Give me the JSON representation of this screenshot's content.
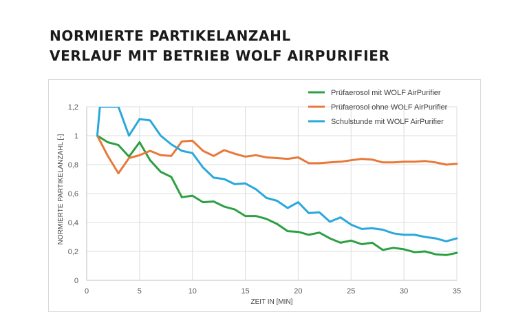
{
  "heading": {
    "line1": "NORMIERTE PARTIKELANZAHL",
    "line2": "VERLAUF MIT BETRIEB WOLF AIRPURIFIER"
  },
  "chart_data": {
    "type": "line",
    "xlabel": "ZEIT IN [MIN]",
    "ylabel": "NORMIERTE PARTIKELANZAHL [-]",
    "xlim": [
      0,
      35
    ],
    "ylim": [
      0,
      1.2
    ],
    "xticks": [
      0,
      5,
      10,
      15,
      20,
      25,
      30,
      35
    ],
    "yticks": [
      0,
      0.2,
      0.4,
      0.6,
      0.8,
      1,
      1.2
    ],
    "xtick_labels": [
      "0",
      "5",
      "10",
      "15",
      "20",
      "25",
      "30",
      "35"
    ],
    "ytick_labels": [
      "0",
      "0,2",
      "0,4",
      "0,6",
      "0,8",
      "1",
      "1,2"
    ],
    "grid": true,
    "legend_position": "top-right",
    "series": [
      {
        "name": "Prüfaerosol mit WOLF AirPurifier",
        "color": "#2ca043",
        "x": [
          1,
          2,
          3,
          4,
          5,
          6,
          7,
          8,
          9,
          10,
          11,
          12,
          13,
          14,
          15,
          16,
          17,
          18,
          19,
          20,
          21,
          22,
          23,
          24,
          25,
          26,
          27,
          28,
          29,
          30,
          31,
          32,
          33,
          34,
          35
        ],
        "y": [
          1.0,
          0.955,
          0.935,
          0.855,
          0.955,
          0.83,
          0.75,
          0.715,
          0.575,
          0.585,
          0.54,
          0.545,
          0.51,
          0.49,
          0.445,
          0.445,
          0.425,
          0.39,
          0.34,
          0.335,
          0.315,
          0.33,
          0.29,
          0.26,
          0.275,
          0.25,
          0.26,
          0.21,
          0.225,
          0.215,
          0.195,
          0.2,
          0.18,
          0.175,
          0.19
        ]
      },
      {
        "name": "Prüfaerosol ohne WOLF AirPurifier",
        "color": "#e8793a",
        "x": [
          1,
          2,
          3,
          4,
          5,
          6,
          7,
          8,
          9,
          10,
          11,
          12,
          13,
          14,
          15,
          16,
          17,
          18,
          19,
          20,
          21,
          22,
          23,
          24,
          25,
          26,
          27,
          28,
          29,
          30,
          31,
          32,
          33,
          34,
          35
        ],
        "y": [
          1.0,
          0.86,
          0.74,
          0.845,
          0.865,
          0.895,
          0.865,
          0.86,
          0.96,
          0.965,
          0.895,
          0.86,
          0.9,
          0.875,
          0.855,
          0.865,
          0.85,
          0.845,
          0.84,
          0.85,
          0.81,
          0.81,
          0.815,
          0.82,
          0.83,
          0.84,
          0.835,
          0.815,
          0.815,
          0.82,
          0.82,
          0.825,
          0.815,
          0.8,
          0.805
        ]
      },
      {
        "name": "Schulstunde mit WOLF AirPurifier",
        "color": "#2aa8dc",
        "x": [
          1,
          1.25,
          3,
          4,
          5,
          6,
          7,
          8,
          9,
          10,
          11,
          12,
          13,
          14,
          15,
          16,
          17,
          18,
          19,
          20,
          21,
          22,
          23,
          24,
          25,
          26,
          27,
          28,
          29,
          30,
          31,
          32,
          33,
          34,
          35
        ],
        "y": [
          1.0,
          1.2,
          1.2,
          1.0,
          1.115,
          1.105,
          1.0,
          0.94,
          0.895,
          0.88,
          0.78,
          0.71,
          0.7,
          0.665,
          0.67,
          0.63,
          0.57,
          0.55,
          0.5,
          0.54,
          0.465,
          0.47,
          0.405,
          0.435,
          0.385,
          0.355,
          0.36,
          0.35,
          0.325,
          0.315,
          0.315,
          0.3,
          0.29,
          0.27,
          0.29
        ]
      }
    ]
  }
}
